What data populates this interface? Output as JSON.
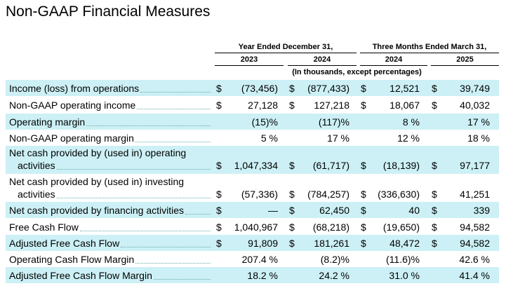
{
  "title": "Non-GAAP Financial Measures",
  "header": {
    "group_year": "Year Ended December 31,",
    "group_quarter": "Three Months Ended March 31,",
    "years": [
      "2023",
      "2024",
      "2024",
      "2025"
    ],
    "units_note": "(In thousands, except percentages)"
  },
  "rows": [
    {
      "label": "Income (loss) from operations",
      "shaded": true,
      "cells": [
        {
          "sym": "$",
          "val": "(73,456)"
        },
        {
          "sym": "$",
          "val": "(877,433)"
        },
        {
          "sym": "$",
          "val": "12,521"
        },
        {
          "sym": "$",
          "val": "39,749"
        }
      ]
    },
    {
      "label": "Non-GAAP operating income",
      "shaded": false,
      "cells": [
        {
          "sym": "$",
          "val": "27,128"
        },
        {
          "sym": "$",
          "val": "127,218"
        },
        {
          "sym": "$",
          "val": "18,067"
        },
        {
          "sym": "$",
          "val": "40,032"
        }
      ]
    },
    {
      "label": "Operating margin",
      "shaded": true,
      "cells": [
        {
          "sym": "",
          "val": "(15)%"
        },
        {
          "sym": "",
          "val": "(117)%"
        },
        {
          "sym": "",
          "val": "8 %"
        },
        {
          "sym": "",
          "val": "17 %"
        }
      ]
    },
    {
      "label": "Non-GAAP operating margin",
      "shaded": false,
      "cells": [
        {
          "sym": "",
          "val": "5 %"
        },
        {
          "sym": "",
          "val": "17 %"
        },
        {
          "sym": "",
          "val": "12 %"
        },
        {
          "sym": "",
          "val": "18 %"
        }
      ]
    },
    {
      "label": "Net cash provided by (used in) operating",
      "label2": "activities",
      "shaded": true,
      "cells": [
        {
          "sym": "$",
          "val": "1,047,334"
        },
        {
          "sym": "$",
          "val": "(61,717)"
        },
        {
          "sym": "$",
          "val": "(18,139)"
        },
        {
          "sym": "$",
          "val": "97,177"
        }
      ]
    },
    {
      "label": "Net cash provided by (used in) investing",
      "label2": "activities",
      "shaded": false,
      "cells": [
        {
          "sym": "$",
          "val": "(57,336)"
        },
        {
          "sym": "$",
          "val": "(784,257)"
        },
        {
          "sym": "$",
          "val": "(336,630)"
        },
        {
          "sym": "$",
          "val": "41,251"
        }
      ]
    },
    {
      "label": "Net cash provided by financing activities",
      "shaded": true,
      "cells": [
        {
          "sym": "$",
          "val": "—"
        },
        {
          "sym": "$",
          "val": "62,450"
        },
        {
          "sym": "$",
          "val": "40"
        },
        {
          "sym": "$",
          "val": "339"
        }
      ]
    },
    {
      "label": "Free Cash Flow",
      "shaded": false,
      "cells": [
        {
          "sym": "$",
          "val": "1,040,967"
        },
        {
          "sym": "$",
          "val": "(68,218)"
        },
        {
          "sym": "$",
          "val": "(19,650)"
        },
        {
          "sym": "$",
          "val": "94,582"
        }
      ]
    },
    {
      "label": "Adjusted Free Cash Flow",
      "shaded": true,
      "cells": [
        {
          "sym": "$",
          "val": "91,809"
        },
        {
          "sym": "$",
          "val": "181,261"
        },
        {
          "sym": "$",
          "val": "48,472"
        },
        {
          "sym": "$",
          "val": "94,582"
        }
      ]
    },
    {
      "label": "Operating Cash Flow Margin",
      "shaded": false,
      "cells": [
        {
          "sym": "",
          "val": "207.4 %"
        },
        {
          "sym": "",
          "val": "(8.2)%"
        },
        {
          "sym": "",
          "val": "(11.6)%"
        },
        {
          "sym": "",
          "val": "42.6 %"
        }
      ]
    },
    {
      "label": "Adjusted Free Cash Flow Margin",
      "shaded": true,
      "cells": [
        {
          "sym": "",
          "val": "18.2 %"
        },
        {
          "sym": "",
          "val": "24.2 %"
        },
        {
          "sym": "",
          "val": "31.0 %"
        },
        {
          "sym": "",
          "val": "41.4 %"
        }
      ]
    }
  ]
}
